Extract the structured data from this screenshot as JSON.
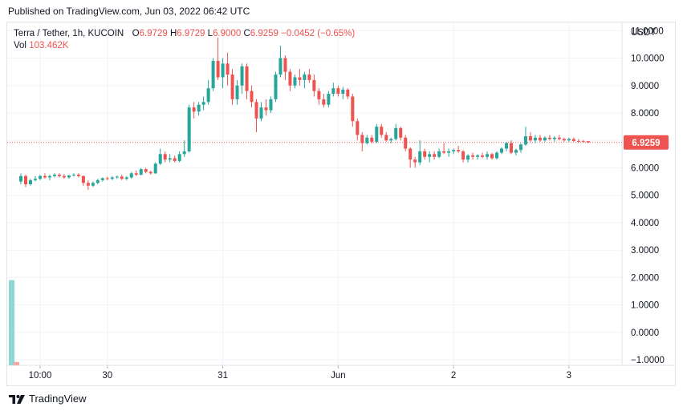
{
  "header": {
    "published": "Published on TradingView.com, Jun 03, 2022 06:42 UTC"
  },
  "legend": {
    "symbol": "Terra / Tether, 1h, KUCOIN",
    "open_label": "O",
    "open": "6.9729",
    "high_label": "H",
    "high": "6.9729",
    "low_label": "L",
    "low": "6.9000",
    "close_label": "C",
    "close": "6.9259",
    "change": "−0.0452 (−0.65%)",
    "vol_label": "Vol",
    "vol_value": "103.462K"
  },
  "footer": {
    "brand": "TradingView"
  },
  "colors": {
    "up": "#26a69a",
    "down": "#ef5350",
    "grid": "#f0f3fa",
    "vol_up": "#8ed8d1",
    "vol_down": "#f7a9a7"
  },
  "chart_data": {
    "type": "candlestick",
    "title": "Terra / Tether, 1h, KUCOIN",
    "currency_label": "USDT",
    "last_price": 6.9259,
    "last_price_label": "6.9259",
    "ylim": [
      -1.2,
      11.3
    ],
    "y_ticks": [
      11,
      10,
      9,
      8,
      7,
      6,
      5,
      4,
      3,
      2,
      1,
      0,
      -1
    ],
    "y_tick_labels": [
      "11.0000",
      "10.0000",
      "9.0000",
      "8.0000",
      "7.0000",
      "6.0000",
      "5.0000",
      "4.0000",
      "3.0000",
      "2.0000",
      "1.0000",
      "0.0000",
      "−1.0000"
    ],
    "x_ticks": [
      {
        "bar": 4,
        "label": "10:00"
      },
      {
        "bar": 18,
        "label": "30"
      },
      {
        "bar": 42,
        "label": "31"
      },
      {
        "bar": 66,
        "label": "Jun"
      },
      {
        "bar": 90,
        "label": "2"
      },
      {
        "bar": 114,
        "label": "3"
      }
    ],
    "candles": [
      [
        5.5,
        5.8,
        5.4,
        5.7
      ],
      [
        5.7,
        5.75,
        5.3,
        5.4
      ],
      [
        5.4,
        5.6,
        5.35,
        5.55
      ],
      [
        5.55,
        5.7,
        5.5,
        5.6
      ],
      [
        5.6,
        5.75,
        5.55,
        5.7
      ],
      [
        5.7,
        5.8,
        5.6,
        5.65
      ],
      [
        5.65,
        5.75,
        5.55,
        5.7
      ],
      [
        5.7,
        5.8,
        5.65,
        5.75
      ],
      [
        5.75,
        5.8,
        5.65,
        5.7
      ],
      [
        5.7,
        5.78,
        5.6,
        5.65
      ],
      [
        5.65,
        5.75,
        5.6,
        5.72
      ],
      [
        5.72,
        5.8,
        5.68,
        5.75
      ],
      [
        5.75,
        5.8,
        5.65,
        5.7
      ],
      [
        5.7,
        5.72,
        5.35,
        5.45
      ],
      [
        5.45,
        5.55,
        5.2,
        5.35
      ],
      [
        5.35,
        5.5,
        5.3,
        5.45
      ],
      [
        5.45,
        5.6,
        5.4,
        5.55
      ],
      [
        5.55,
        5.65,
        5.5,
        5.62
      ],
      [
        5.62,
        5.68,
        5.55,
        5.6
      ],
      [
        5.6,
        5.7,
        5.55,
        5.65
      ],
      [
        5.65,
        5.72,
        5.6,
        5.68
      ],
      [
        5.68,
        5.75,
        5.55,
        5.6
      ],
      [
        5.6,
        5.7,
        5.55,
        5.65
      ],
      [
        5.65,
        5.85,
        5.6,
        5.8
      ],
      [
        5.8,
        5.9,
        5.7,
        5.75
      ],
      [
        5.75,
        6.0,
        5.72,
        5.95
      ],
      [
        5.95,
        6.0,
        5.8,
        5.85
      ],
      [
        5.85,
        5.9,
        5.75,
        5.8
      ],
      [
        5.8,
        6.2,
        5.78,
        6.15
      ],
      [
        6.15,
        6.7,
        6.1,
        6.5
      ],
      [
        6.5,
        6.6,
        6.2,
        6.3
      ],
      [
        6.3,
        6.5,
        6.2,
        6.35
      ],
      [
        6.35,
        6.45,
        6.2,
        6.25
      ],
      [
        6.25,
        6.6,
        6.2,
        6.5
      ],
      [
        6.5,
        7.0,
        6.4,
        6.6
      ],
      [
        6.6,
        8.3,
        6.55,
        8.2
      ],
      [
        8.2,
        8.4,
        7.8,
        8.05
      ],
      [
        8.05,
        8.4,
        7.9,
        8.3
      ],
      [
        8.3,
        8.6,
        8.1,
        8.4
      ],
      [
        8.4,
        9.2,
        8.3,
        8.9
      ],
      [
        8.9,
        10.0,
        8.8,
        9.9
      ],
      [
        9.9,
        10.75,
        9.2,
        9.3
      ],
      [
        9.3,
        10.0,
        8.9,
        9.8
      ],
      [
        9.8,
        10.2,
        9.0,
        9.4
      ],
      [
        9.4,
        9.6,
        8.3,
        8.5
      ],
      [
        8.5,
        9.2,
        8.3,
        9.0
      ],
      [
        9.0,
        9.8,
        8.7,
        9.7
      ],
      [
        9.7,
        9.8,
        8.5,
        8.8
      ],
      [
        8.8,
        9.0,
        8.2,
        8.4
      ],
      [
        8.4,
        8.5,
        7.3,
        7.8
      ],
      [
        7.8,
        8.4,
        7.7,
        8.2
      ],
      [
        8.2,
        8.5,
        7.9,
        8.1
      ],
      [
        8.1,
        8.6,
        8.0,
        8.5
      ],
      [
        8.5,
        9.5,
        8.4,
        9.4
      ],
      [
        9.4,
        10.45,
        9.3,
        10.0
      ],
      [
        10.0,
        10.1,
        9.2,
        9.5
      ],
      [
        9.5,
        9.6,
        8.8,
        9.0
      ],
      [
        9.0,
        9.4,
        8.9,
        9.3
      ],
      [
        9.3,
        9.6,
        9.0,
        9.2
      ],
      [
        9.2,
        9.5,
        8.9,
        9.4
      ],
      [
        9.4,
        9.6,
        9.1,
        9.2
      ],
      [
        9.2,
        9.4,
        8.6,
        8.8
      ],
      [
        8.8,
        8.9,
        8.3,
        8.5
      ],
      [
        8.5,
        8.7,
        8.2,
        8.3
      ],
      [
        8.3,
        8.8,
        8.2,
        8.7
      ],
      [
        8.7,
        9.1,
        8.6,
        8.9
      ],
      [
        8.9,
        9.0,
        8.6,
        8.7
      ],
      [
        8.7,
        8.95,
        8.5,
        8.85
      ],
      [
        8.85,
        8.9,
        8.5,
        8.6
      ],
      [
        8.6,
        8.7,
        7.5,
        7.7
      ],
      [
        7.7,
        7.8,
        7.0,
        7.2
      ],
      [
        7.2,
        7.3,
        6.6,
        6.9
      ],
      [
        6.9,
        7.2,
        6.85,
        7.1
      ],
      [
        7.1,
        7.2,
        6.9,
        6.95
      ],
      [
        6.95,
        7.6,
        6.9,
        7.5
      ],
      [
        7.5,
        7.6,
        7.1,
        7.2
      ],
      [
        7.2,
        7.3,
        6.95,
        7.0
      ],
      [
        7.0,
        7.1,
        6.9,
        7.05
      ],
      [
        7.05,
        7.6,
        7.0,
        7.45
      ],
      [
        7.45,
        7.5,
        7.0,
        7.1
      ],
      [
        7.1,
        7.2,
        6.6,
        6.7
      ],
      [
        6.7,
        6.75,
        6.0,
        6.3
      ],
      [
        6.3,
        6.4,
        6.0,
        6.2
      ],
      [
        6.2,
        7.0,
        6.1,
        6.6
      ],
      [
        6.6,
        6.7,
        6.3,
        6.4
      ],
      [
        6.4,
        6.6,
        6.2,
        6.5
      ],
      [
        6.5,
        6.6,
        6.3,
        6.4
      ],
      [
        6.4,
        6.7,
        6.35,
        6.6
      ],
      [
        6.6,
        6.9,
        6.5,
        6.55
      ],
      [
        6.55,
        6.7,
        6.4,
        6.6
      ],
      [
        6.6,
        6.7,
        6.5,
        6.65
      ],
      [
        6.65,
        6.8,
        6.55,
        6.6
      ],
      [
        6.6,
        6.65,
        6.2,
        6.3
      ],
      [
        6.3,
        6.5,
        6.2,
        6.45
      ],
      [
        6.45,
        6.55,
        6.3,
        6.4
      ],
      [
        6.4,
        6.5,
        6.3,
        6.45
      ],
      [
        6.45,
        6.55,
        6.35,
        6.4
      ],
      [
        6.4,
        6.6,
        6.3,
        6.5
      ],
      [
        6.5,
        6.55,
        6.3,
        6.35
      ],
      [
        6.35,
        6.6,
        6.3,
        6.55
      ],
      [
        6.55,
        6.75,
        6.5,
        6.7
      ],
      [
        6.7,
        6.95,
        6.6,
        6.9
      ],
      [
        6.9,
        7.0,
        6.5,
        6.55
      ],
      [
        6.55,
        6.7,
        6.45,
        6.65
      ],
      [
        6.65,
        6.9,
        6.55,
        6.85
      ],
      [
        6.85,
        7.5,
        6.8,
        7.15
      ],
      [
        7.15,
        7.3,
        6.95,
        7.0
      ],
      [
        7.0,
        7.2,
        6.9,
        7.1
      ],
      [
        7.1,
        7.2,
        6.95,
        7.0
      ],
      [
        7.0,
        7.15,
        6.95,
        7.1
      ],
      [
        7.1,
        7.2,
        7.0,
        7.05
      ],
      [
        7.05,
        7.15,
        6.95,
        7.1
      ],
      [
        7.1,
        7.2,
        7.0,
        7.05
      ],
      [
        7.05,
        7.1,
        6.95,
        7.0
      ],
      [
        7.0,
        7.1,
        6.95,
        7.05
      ],
      [
        7.05,
        7.1,
        6.95,
        6.98
      ],
      [
        6.98,
        7.05,
        6.93,
        6.97
      ],
      [
        6.97,
        7.02,
        6.92,
        6.95
      ],
      [
        6.9729,
        6.9729,
        6.9,
        6.9259
      ]
    ],
    "volume": {
      "series_name": "Vol",
      "scale_max": 103.462,
      "bars": [
        {
          "bar": 0,
          "value": 100.0,
          "direction": "up"
        },
        {
          "bar": 1,
          "value": 4.0,
          "direction": "down"
        }
      ]
    }
  }
}
